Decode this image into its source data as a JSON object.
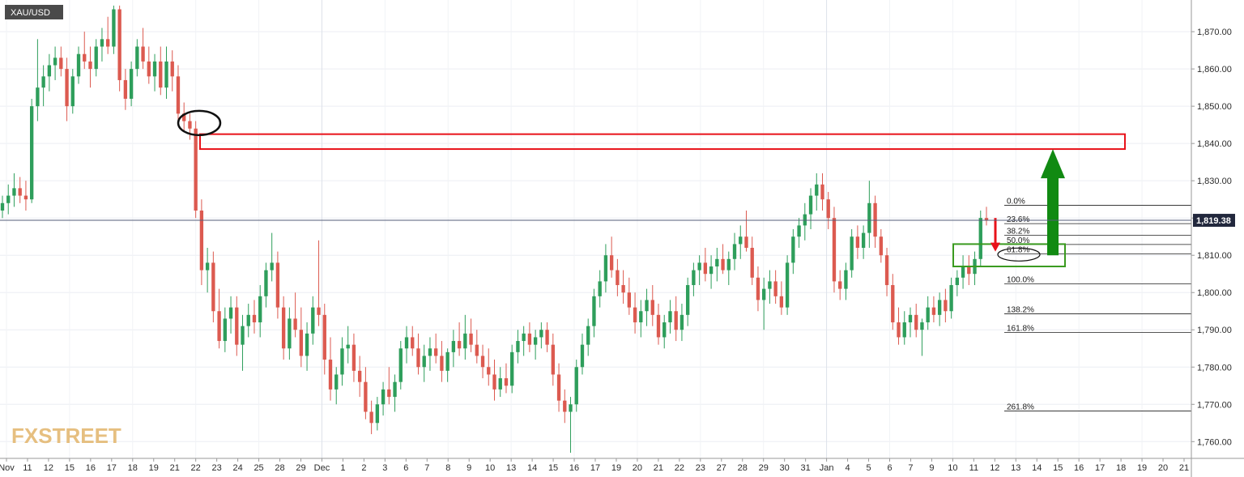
{
  "chart_data": {
    "type": "candlestick",
    "symbol": "XAU/USD",
    "current_price_label": "1,819.38",
    "current_price": 1819.38,
    "y_ticks": [
      {
        "value": 1760,
        "label": "1,760.00"
      },
      {
        "value": 1770,
        "label": "1,770.00"
      },
      {
        "value": 1780,
        "label": "1,780.00"
      },
      {
        "value": 1790,
        "label": "1,790.00"
      },
      {
        "value": 1800,
        "label": "1,800.00"
      },
      {
        "value": 1810,
        "label": "1,810.00"
      },
      {
        "value": 1820,
        "label": "1,820.00"
      },
      {
        "value": 1830,
        "label": "1,830.00"
      },
      {
        "value": 1840,
        "label": "1,840.00"
      },
      {
        "value": 1850,
        "label": "1,850.00"
      },
      {
        "value": 1860,
        "label": "1,860.00"
      },
      {
        "value": 1870,
        "label": "1,870.00"
      }
    ],
    "ylim": [
      1755.5,
      1878.5
    ],
    "x_labels": [
      "Nov",
      "11",
      "12",
      "15",
      "16",
      "17",
      "18",
      "19",
      "21",
      "22",
      "23",
      "24",
      "25",
      "28",
      "29",
      "Dec",
      "1",
      "2",
      "3",
      "6",
      "7",
      "8",
      "9",
      "10",
      "13",
      "14",
      "15",
      "16",
      "17",
      "19",
      "20",
      "21",
      "22",
      "23",
      "27",
      "28",
      "29",
      "30",
      "31",
      "Jan",
      "4",
      "5",
      "6",
      "7",
      "9",
      "10",
      "11",
      "12",
      "13",
      "14",
      "15",
      "16",
      "17",
      "18",
      "19",
      "20",
      "21"
    ],
    "x_divider_labels": [
      "Dec",
      "Jan"
    ],
    "fibonacci": [
      {
        "label": "0.0%",
        "value": 1823.4
      },
      {
        "label": "23.6%",
        "value": 1818.5
      },
      {
        "label": "38.2%",
        "value": 1815.4
      },
      {
        "label": "50.0%",
        "value": 1812.9
      },
      {
        "label": "61.8%",
        "value": 1810.4
      },
      {
        "label": "100.0%",
        "value": 1802.3
      },
      {
        "label": "138.2%",
        "value": 1794.3
      },
      {
        "label": "161.8%",
        "value": 1789.3
      },
      {
        "label": "261.8%",
        "value": 1768.2
      }
    ],
    "annotations": {
      "resistance_zone": [
        1838.5,
        1842.5
      ],
      "support_zone": [
        1807,
        1813
      ],
      "target_arrow_to": 1838.5,
      "pullback_arrow_to": 1811
    },
    "grid": true,
    "watermark": "FXSTREET",
    "candles": [
      {
        "o": 1822,
        "h": 1826,
        "l": 1820,
        "c": 1824
      },
      {
        "o": 1824,
        "h": 1829,
        "l": 1821,
        "c": 1826
      },
      {
        "o": 1826,
        "h": 1832,
        "l": 1823,
        "c": 1828
      },
      {
        "o": 1828,
        "h": 1831,
        "l": 1824,
        "c": 1826
      },
      {
        "o": 1826,
        "h": 1830,
        "l": 1822,
        "c": 1825
      },
      {
        "o": 1825,
        "h": 1852,
        "l": 1824,
        "c": 1850
      },
      {
        "o": 1850,
        "h": 1868,
        "l": 1846,
        "c": 1855
      },
      {
        "o": 1855,
        "h": 1861,
        "l": 1850,
        "c": 1858
      },
      {
        "o": 1858,
        "h": 1864,
        "l": 1854,
        "c": 1861
      },
      {
        "o": 1861,
        "h": 1866,
        "l": 1857,
        "c": 1863
      },
      {
        "o": 1863,
        "h": 1866,
        "l": 1858,
        "c": 1860
      },
      {
        "o": 1860,
        "h": 1863,
        "l": 1846,
        "c": 1850
      },
      {
        "o": 1850,
        "h": 1860,
        "l": 1848,
        "c": 1858
      },
      {
        "o": 1858,
        "h": 1866,
        "l": 1856,
        "c": 1864
      },
      {
        "o": 1864,
        "h": 1870,
        "l": 1860,
        "c": 1862
      },
      {
        "o": 1862,
        "h": 1866,
        "l": 1855,
        "c": 1860
      },
      {
        "o": 1860,
        "h": 1868,
        "l": 1858,
        "c": 1866
      },
      {
        "o": 1866,
        "h": 1871,
        "l": 1862,
        "c": 1868
      },
      {
        "o": 1868,
        "h": 1874,
        "l": 1864,
        "c": 1866
      },
      {
        "o": 1866,
        "h": 1877,
        "l": 1864,
        "c": 1876
      },
      {
        "o": 1876,
        "h": 1877,
        "l": 1854,
        "c": 1857
      },
      {
        "o": 1857,
        "h": 1860,
        "l": 1849,
        "c": 1852
      },
      {
        "o": 1852,
        "h": 1862,
        "l": 1850,
        "c": 1860
      },
      {
        "o": 1860,
        "h": 1868,
        "l": 1858,
        "c": 1866
      },
      {
        "o": 1866,
        "h": 1871,
        "l": 1860,
        "c": 1862
      },
      {
        "o": 1862,
        "h": 1866,
        "l": 1856,
        "c": 1858
      },
      {
        "o": 1858,
        "h": 1864,
        "l": 1854,
        "c": 1862
      },
      {
        "o": 1862,
        "h": 1866,
        "l": 1853,
        "c": 1855
      },
      {
        "o": 1855,
        "h": 1866,
        "l": 1852,
        "c": 1862
      },
      {
        "o": 1862,
        "h": 1865,
        "l": 1854,
        "c": 1858
      },
      {
        "o": 1858,
        "h": 1861,
        "l": 1846,
        "c": 1848
      },
      {
        "o": 1848,
        "h": 1851,
        "l": 1843,
        "c": 1846
      },
      {
        "o": 1846,
        "h": 1848,
        "l": 1841,
        "c": 1844
      },
      {
        "o": 1844,
        "h": 1846,
        "l": 1820,
        "c": 1822
      },
      {
        "o": 1822,
        "h": 1825,
        "l": 1802,
        "c": 1806
      },
      {
        "o": 1806,
        "h": 1812,
        "l": 1800,
        "c": 1808
      },
      {
        "o": 1808,
        "h": 1811,
        "l": 1792,
        "c": 1795
      },
      {
        "o": 1795,
        "h": 1801,
        "l": 1785,
        "c": 1787
      },
      {
        "o": 1787,
        "h": 1796,
        "l": 1784,
        "c": 1793
      },
      {
        "o": 1793,
        "h": 1799,
        "l": 1789,
        "c": 1796
      },
      {
        "o": 1796,
        "h": 1799,
        "l": 1783,
        "c": 1786
      },
      {
        "o": 1786,
        "h": 1794,
        "l": 1779,
        "c": 1791
      },
      {
        "o": 1791,
        "h": 1797,
        "l": 1788,
        "c": 1794
      },
      {
        "o": 1794,
        "h": 1798,
        "l": 1789,
        "c": 1792
      },
      {
        "o": 1792,
        "h": 1802,
        "l": 1788,
        "c": 1799
      },
      {
        "o": 1799,
        "h": 1808,
        "l": 1796,
        "c": 1806
      },
      {
        "o": 1806,
        "h": 1816,
        "l": 1803,
        "c": 1808
      },
      {
        "o": 1808,
        "h": 1811,
        "l": 1793,
        "c": 1796
      },
      {
        "o": 1796,
        "h": 1799,
        "l": 1782,
        "c": 1785
      },
      {
        "o": 1785,
        "h": 1796,
        "l": 1782,
        "c": 1793
      },
      {
        "o": 1793,
        "h": 1800,
        "l": 1788,
        "c": 1790
      },
      {
        "o": 1790,
        "h": 1796,
        "l": 1780,
        "c": 1783
      },
      {
        "o": 1783,
        "h": 1792,
        "l": 1779,
        "c": 1789
      },
      {
        "o": 1789,
        "h": 1799,
        "l": 1786,
        "c": 1796
      },
      {
        "o": 1796,
        "h": 1814,
        "l": 1791,
        "c": 1794
      },
      {
        "o": 1794,
        "h": 1797,
        "l": 1778,
        "c": 1782
      },
      {
        "o": 1782,
        "h": 1788,
        "l": 1771,
        "c": 1774
      },
      {
        "o": 1774,
        "h": 1780,
        "l": 1770,
        "c": 1778
      },
      {
        "o": 1778,
        "h": 1788,
        "l": 1775,
        "c": 1785
      },
      {
        "o": 1785,
        "h": 1791,
        "l": 1781,
        "c": 1786
      },
      {
        "o": 1786,
        "h": 1789,
        "l": 1776,
        "c": 1779
      },
      {
        "o": 1779,
        "h": 1783,
        "l": 1772,
        "c": 1776
      },
      {
        "o": 1776,
        "h": 1780,
        "l": 1766,
        "c": 1768
      },
      {
        "o": 1768,
        "h": 1771,
        "l": 1762,
        "c": 1765
      },
      {
        "o": 1765,
        "h": 1772,
        "l": 1763,
        "c": 1770
      },
      {
        "o": 1770,
        "h": 1776,
        "l": 1767,
        "c": 1774
      },
      {
        "o": 1774,
        "h": 1780,
        "l": 1770,
        "c": 1772
      },
      {
        "o": 1772,
        "h": 1778,
        "l": 1768,
        "c": 1776
      },
      {
        "o": 1776,
        "h": 1787,
        "l": 1774,
        "c": 1785
      },
      {
        "o": 1785,
        "h": 1791,
        "l": 1781,
        "c": 1788
      },
      {
        "o": 1788,
        "h": 1791,
        "l": 1783,
        "c": 1785
      },
      {
        "o": 1785,
        "h": 1789,
        "l": 1778,
        "c": 1780
      },
      {
        "o": 1780,
        "h": 1786,
        "l": 1776,
        "c": 1783
      },
      {
        "o": 1783,
        "h": 1788,
        "l": 1779,
        "c": 1785
      },
      {
        "o": 1785,
        "h": 1789,
        "l": 1781,
        "c": 1783
      },
      {
        "o": 1783,
        "h": 1787,
        "l": 1776,
        "c": 1779
      },
      {
        "o": 1779,
        "h": 1785,
        "l": 1776,
        "c": 1784
      },
      {
        "o": 1784,
        "h": 1790,
        "l": 1780,
        "c": 1787
      },
      {
        "o": 1787,
        "h": 1792,
        "l": 1783,
        "c": 1785
      },
      {
        "o": 1785,
        "h": 1794,
        "l": 1782,
        "c": 1789
      },
      {
        "o": 1789,
        "h": 1793,
        "l": 1784,
        "c": 1786
      },
      {
        "o": 1786,
        "h": 1790,
        "l": 1781,
        "c": 1783
      },
      {
        "o": 1783,
        "h": 1786,
        "l": 1777,
        "c": 1780
      },
      {
        "o": 1780,
        "h": 1785,
        "l": 1775,
        "c": 1778
      },
      {
        "o": 1778,
        "h": 1782,
        "l": 1771,
        "c": 1774
      },
      {
        "o": 1774,
        "h": 1780,
        "l": 1772,
        "c": 1777
      },
      {
        "o": 1777,
        "h": 1781,
        "l": 1773,
        "c": 1775
      },
      {
        "o": 1775,
        "h": 1786,
        "l": 1773,
        "c": 1784
      },
      {
        "o": 1784,
        "h": 1790,
        "l": 1781,
        "c": 1787
      },
      {
        "o": 1787,
        "h": 1791,
        "l": 1783,
        "c": 1789
      },
      {
        "o": 1789,
        "h": 1792,
        "l": 1784,
        "c": 1786
      },
      {
        "o": 1786,
        "h": 1790,
        "l": 1782,
        "c": 1788
      },
      {
        "o": 1788,
        "h": 1792,
        "l": 1785,
        "c": 1790
      },
      {
        "o": 1790,
        "h": 1792,
        "l": 1784,
        "c": 1786
      },
      {
        "o": 1786,
        "h": 1789,
        "l": 1775,
        "c": 1778
      },
      {
        "o": 1778,
        "h": 1781,
        "l": 1768,
        "c": 1771
      },
      {
        "o": 1771,
        "h": 1774,
        "l": 1765,
        "c": 1768
      },
      {
        "o": 1768,
        "h": 1772,
        "l": 1757,
        "c": 1770
      },
      {
        "o": 1770,
        "h": 1782,
        "l": 1768,
        "c": 1780
      },
      {
        "o": 1780,
        "h": 1789,
        "l": 1778,
        "c": 1786
      },
      {
        "o": 1786,
        "h": 1793,
        "l": 1783,
        "c": 1791
      },
      {
        "o": 1791,
        "h": 1801,
        "l": 1788,
        "c": 1799
      },
      {
        "o": 1799,
        "h": 1806,
        "l": 1796,
        "c": 1803
      },
      {
        "o": 1803,
        "h": 1813,
        "l": 1800,
        "c": 1810
      },
      {
        "o": 1810,
        "h": 1815,
        "l": 1804,
        "c": 1806
      },
      {
        "o": 1806,
        "h": 1809,
        "l": 1799,
        "c": 1802
      },
      {
        "o": 1802,
        "h": 1806,
        "l": 1797,
        "c": 1800
      },
      {
        "o": 1800,
        "h": 1804,
        "l": 1794,
        "c": 1796
      },
      {
        "o": 1796,
        "h": 1800,
        "l": 1789,
        "c": 1792
      },
      {
        "o": 1792,
        "h": 1798,
        "l": 1788,
        "c": 1795
      },
      {
        "o": 1795,
        "h": 1801,
        "l": 1791,
        "c": 1798
      },
      {
        "o": 1798,
        "h": 1802,
        "l": 1791,
        "c": 1794
      },
      {
        "o": 1794,
        "h": 1797,
        "l": 1786,
        "c": 1788
      },
      {
        "o": 1788,
        "h": 1794,
        "l": 1785,
        "c": 1792
      },
      {
        "o": 1792,
        "h": 1798,
        "l": 1789,
        "c": 1795
      },
      {
        "o": 1795,
        "h": 1799,
        "l": 1787,
        "c": 1790
      },
      {
        "o": 1790,
        "h": 1797,
        "l": 1787,
        "c": 1794
      },
      {
        "o": 1794,
        "h": 1804,
        "l": 1791,
        "c": 1802
      },
      {
        "o": 1802,
        "h": 1808,
        "l": 1799,
        "c": 1806
      },
      {
        "o": 1806,
        "h": 1810,
        "l": 1802,
        "c": 1808
      },
      {
        "o": 1808,
        "h": 1812,
        "l": 1803,
        "c": 1805
      },
      {
        "o": 1805,
        "h": 1810,
        "l": 1801,
        "c": 1807
      },
      {
        "o": 1807,
        "h": 1812,
        "l": 1803,
        "c": 1809
      },
      {
        "o": 1809,
        "h": 1813,
        "l": 1805,
        "c": 1806
      },
      {
        "o": 1806,
        "h": 1811,
        "l": 1802,
        "c": 1809
      },
      {
        "o": 1809,
        "h": 1816,
        "l": 1806,
        "c": 1813
      },
      {
        "o": 1813,
        "h": 1818,
        "l": 1809,
        "c": 1815
      },
      {
        "o": 1815,
        "h": 1822,
        "l": 1811,
        "c": 1812
      },
      {
        "o": 1812,
        "h": 1815,
        "l": 1802,
        "c": 1804
      },
      {
        "o": 1804,
        "h": 1807,
        "l": 1795,
        "c": 1798
      },
      {
        "o": 1798,
        "h": 1804,
        "l": 1790,
        "c": 1801
      },
      {
        "o": 1801,
        "h": 1806,
        "l": 1797,
        "c": 1803
      },
      {
        "o": 1803,
        "h": 1806,
        "l": 1797,
        "c": 1799
      },
      {
        "o": 1799,
        "h": 1803,
        "l": 1794,
        "c": 1796
      },
      {
        "o": 1796,
        "h": 1810,
        "l": 1794,
        "c": 1808
      },
      {
        "o": 1808,
        "h": 1817,
        "l": 1805,
        "c": 1815
      },
      {
        "o": 1815,
        "h": 1820,
        "l": 1812,
        "c": 1818
      },
      {
        "o": 1818,
        "h": 1824,
        "l": 1814,
        "c": 1821
      },
      {
        "o": 1821,
        "h": 1828,
        "l": 1817,
        "c": 1826
      },
      {
        "o": 1826,
        "h": 1832,
        "l": 1822,
        "c": 1829
      },
      {
        "o": 1829,
        "h": 1832,
        "l": 1822,
        "c": 1825
      },
      {
        "o": 1825,
        "h": 1827,
        "l": 1817,
        "c": 1820
      },
      {
        "o": 1820,
        "h": 1823,
        "l": 1800,
        "c": 1803
      },
      {
        "o": 1803,
        "h": 1806,
        "l": 1798,
        "c": 1801
      },
      {
        "o": 1801,
        "h": 1808,
        "l": 1798,
        "c": 1806
      },
      {
        "o": 1806,
        "h": 1817,
        "l": 1804,
        "c": 1815
      },
      {
        "o": 1815,
        "h": 1818,
        "l": 1809,
        "c": 1812
      },
      {
        "o": 1812,
        "h": 1818,
        "l": 1809,
        "c": 1816
      },
      {
        "o": 1816,
        "h": 1830,
        "l": 1812,
        "c": 1824
      },
      {
        "o": 1824,
        "h": 1826,
        "l": 1812,
        "c": 1815
      },
      {
        "o": 1815,
        "h": 1817,
        "l": 1808,
        "c": 1810
      },
      {
        "o": 1810,
        "h": 1812,
        "l": 1799,
        "c": 1802
      },
      {
        "o": 1802,
        "h": 1805,
        "l": 1790,
        "c": 1792
      },
      {
        "o": 1792,
        "h": 1796,
        "l": 1786,
        "c": 1788
      },
      {
        "o": 1788,
        "h": 1795,
        "l": 1786,
        "c": 1792
      },
      {
        "o": 1792,
        "h": 1796,
        "l": 1788,
        "c": 1794
      },
      {
        "o": 1794,
        "h": 1797,
        "l": 1788,
        "c": 1790
      },
      {
        "o": 1790,
        "h": 1793,
        "l": 1783,
        "c": 1792
      },
      {
        "o": 1792,
        "h": 1799,
        "l": 1790,
        "c": 1796
      },
      {
        "o": 1796,
        "h": 1799,
        "l": 1792,
        "c": 1794
      },
      {
        "o": 1794,
        "h": 1800,
        "l": 1791,
        "c": 1798
      },
      {
        "o": 1798,
        "h": 1801,
        "l": 1792,
        "c": 1795
      },
      {
        "o": 1795,
        "h": 1804,
        "l": 1793,
        "c": 1802
      },
      {
        "o": 1802,
        "h": 1806,
        "l": 1799,
        "c": 1804
      },
      {
        "o": 1804,
        "h": 1810,
        "l": 1801,
        "c": 1807
      },
      {
        "o": 1807,
        "h": 1810,
        "l": 1802,
        "c": 1805
      },
      {
        "o": 1805,
        "h": 1811,
        "l": 1802,
        "c": 1809
      },
      {
        "o": 1809,
        "h": 1822,
        "l": 1807,
        "c": 1820
      },
      {
        "o": 1820,
        "h": 1823,
        "l": 1818,
        "c": 1819.38
      }
    ]
  }
}
